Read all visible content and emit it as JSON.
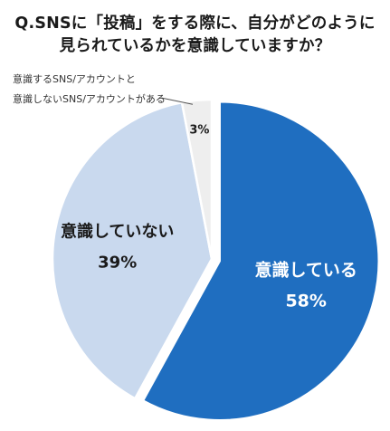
{
  "chart_data": {
    "type": "pie",
    "title": "Q.SNSに「投稿」をする際に、自分がどのように見られているかを意識していますか？",
    "title_lines": [
      "Q.SNSに「投稿」をする際に、自分がどのように",
      "見られているかを意識していますか？"
    ],
    "slices": [
      {
        "label": "意識している",
        "value": 58,
        "value_label": "58%",
        "color": "#1f6ec0"
      },
      {
        "label": "意識していない",
        "value": 39,
        "value_label": "39%",
        "color": "#c9d9ee"
      },
      {
        "label": "意識するSNS/アカウントと意識しないSNS/アカウントがある",
        "value": 3,
        "value_label": "3%",
        "color": "#eeeeee"
      }
    ],
    "callout_lines": [
      "意識するSNS/アカウントと",
      "意識しないSNS/アカウントがある"
    ],
    "start": "12 o'clock",
    "direction": "clockwise",
    "legend": "none"
  }
}
